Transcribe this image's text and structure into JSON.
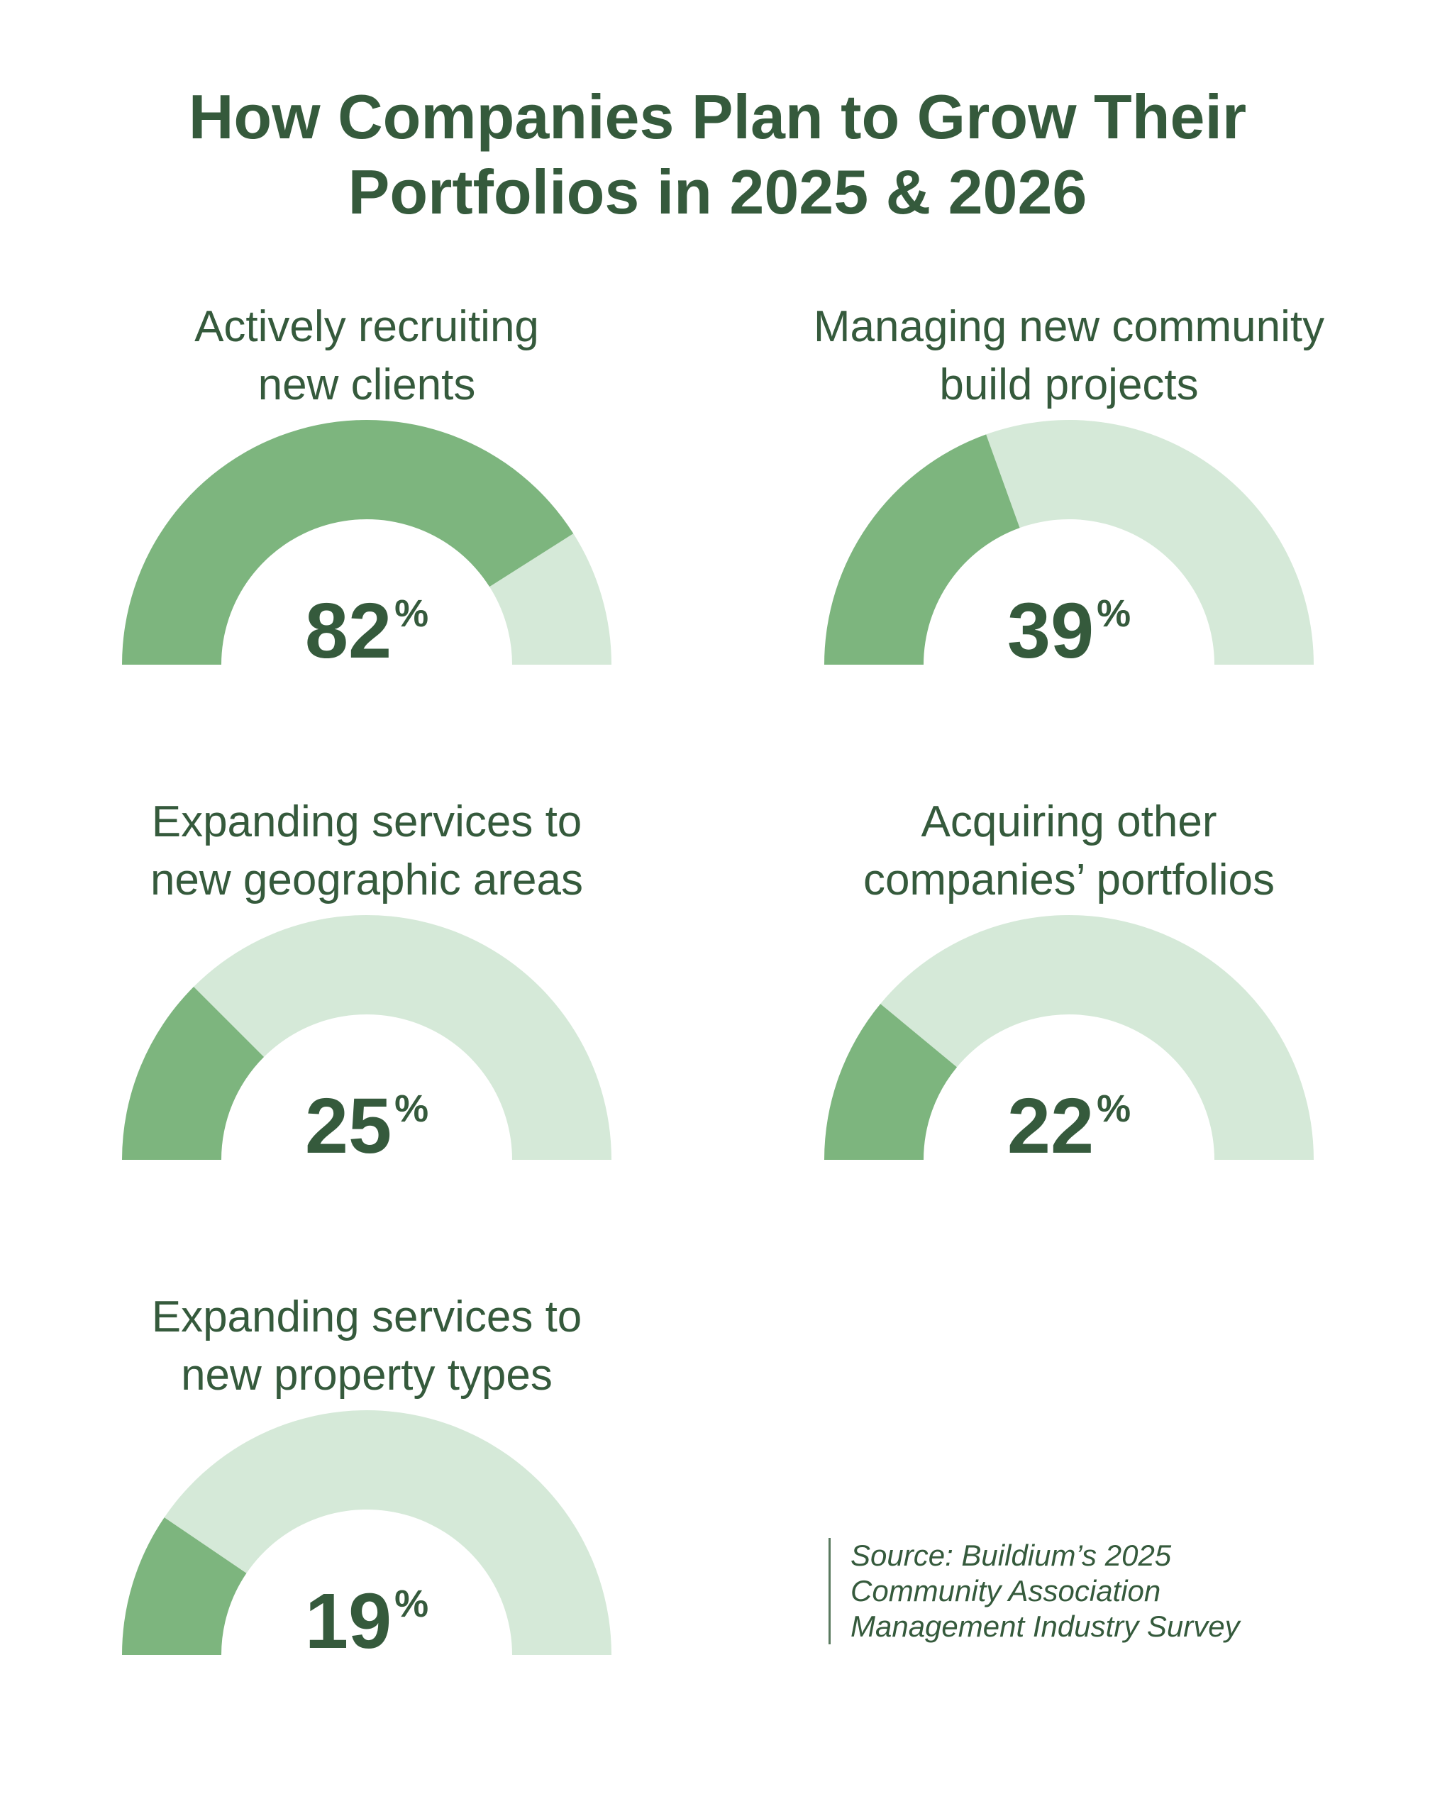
{
  "title": {
    "line1": "How Companies Plan to Grow Their",
    "line2": "Portfolios in 2025 & 2026"
  },
  "colors": {
    "filled": "#7db57e",
    "remaining": "#d5e9d8",
    "text": "#355a3c"
  },
  "chart_data": {
    "type": "gauge",
    "title": "How Companies Plan to Grow Their Portfolios in 2025 & 2026",
    "unit": "%",
    "range": [
      0,
      100
    ],
    "gauges": [
      {
        "label_line1": "Actively recruiting",
        "label_line2": "new clients",
        "value": 82,
        "display": "82",
        "suffix": "%"
      },
      {
        "label_line1": "Managing new community",
        "label_line2": "build projects",
        "value": 39,
        "display": "39",
        "suffix": "%"
      },
      {
        "label_line1": "Expanding services to",
        "label_line2": "new geographic areas",
        "value": 25,
        "display": "25",
        "suffix": "%"
      },
      {
        "label_line1": "Acquiring other",
        "label_line2": "companies’ portfolios",
        "value": 22,
        "display": "22",
        "suffix": "%"
      },
      {
        "label_line1": "Expanding services to",
        "label_line2": "new property types",
        "value": 19,
        "display": "19",
        "suffix": "%"
      }
    ]
  },
  "source": {
    "line1": "Source: Buildium’s 2025",
    "line2": "Community Association",
    "line3": "Management Industry Survey"
  }
}
